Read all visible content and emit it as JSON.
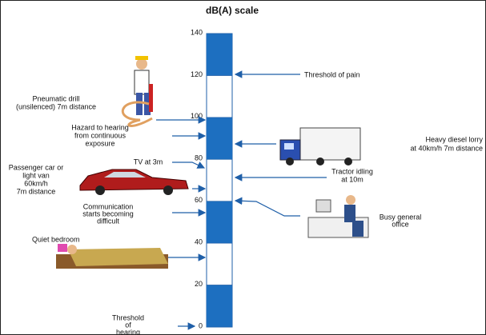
{
  "title": "dB(A) scale",
  "scale": {
    "ticks": [
      0,
      20,
      40,
      60,
      80,
      100,
      120,
      140
    ]
  },
  "annotations": [
    {
      "lines": [
        "Threshold of pain"
      ]
    },
    {
      "lines": [
        "Pneumatic drill",
        "(unsilenced) 7m distance"
      ]
    },
    {
      "lines": [
        "Hazard to hearing",
        "from continuous",
        "exposure"
      ]
    },
    {
      "lines": [
        "Heavy diesel lorry",
        "at 40km/h 7m distance"
      ]
    },
    {
      "lines": [
        "TV at 3m"
      ]
    },
    {
      "lines": [
        "Passenger car or",
        "light van",
        "60km/h",
        "7m distance"
      ]
    },
    {
      "lines": [
        "Tractor idling",
        "at 10m"
      ]
    },
    {
      "lines": [
        "Communication",
        "starts becoming",
        "difficult"
      ]
    },
    {
      "lines": [
        "Busy general",
        "office"
      ]
    },
    {
      "lines": [
        "Quiet bedroom"
      ]
    },
    {
      "lines": [
        "Threshold",
        "of",
        "hearing"
      ]
    }
  ]
}
